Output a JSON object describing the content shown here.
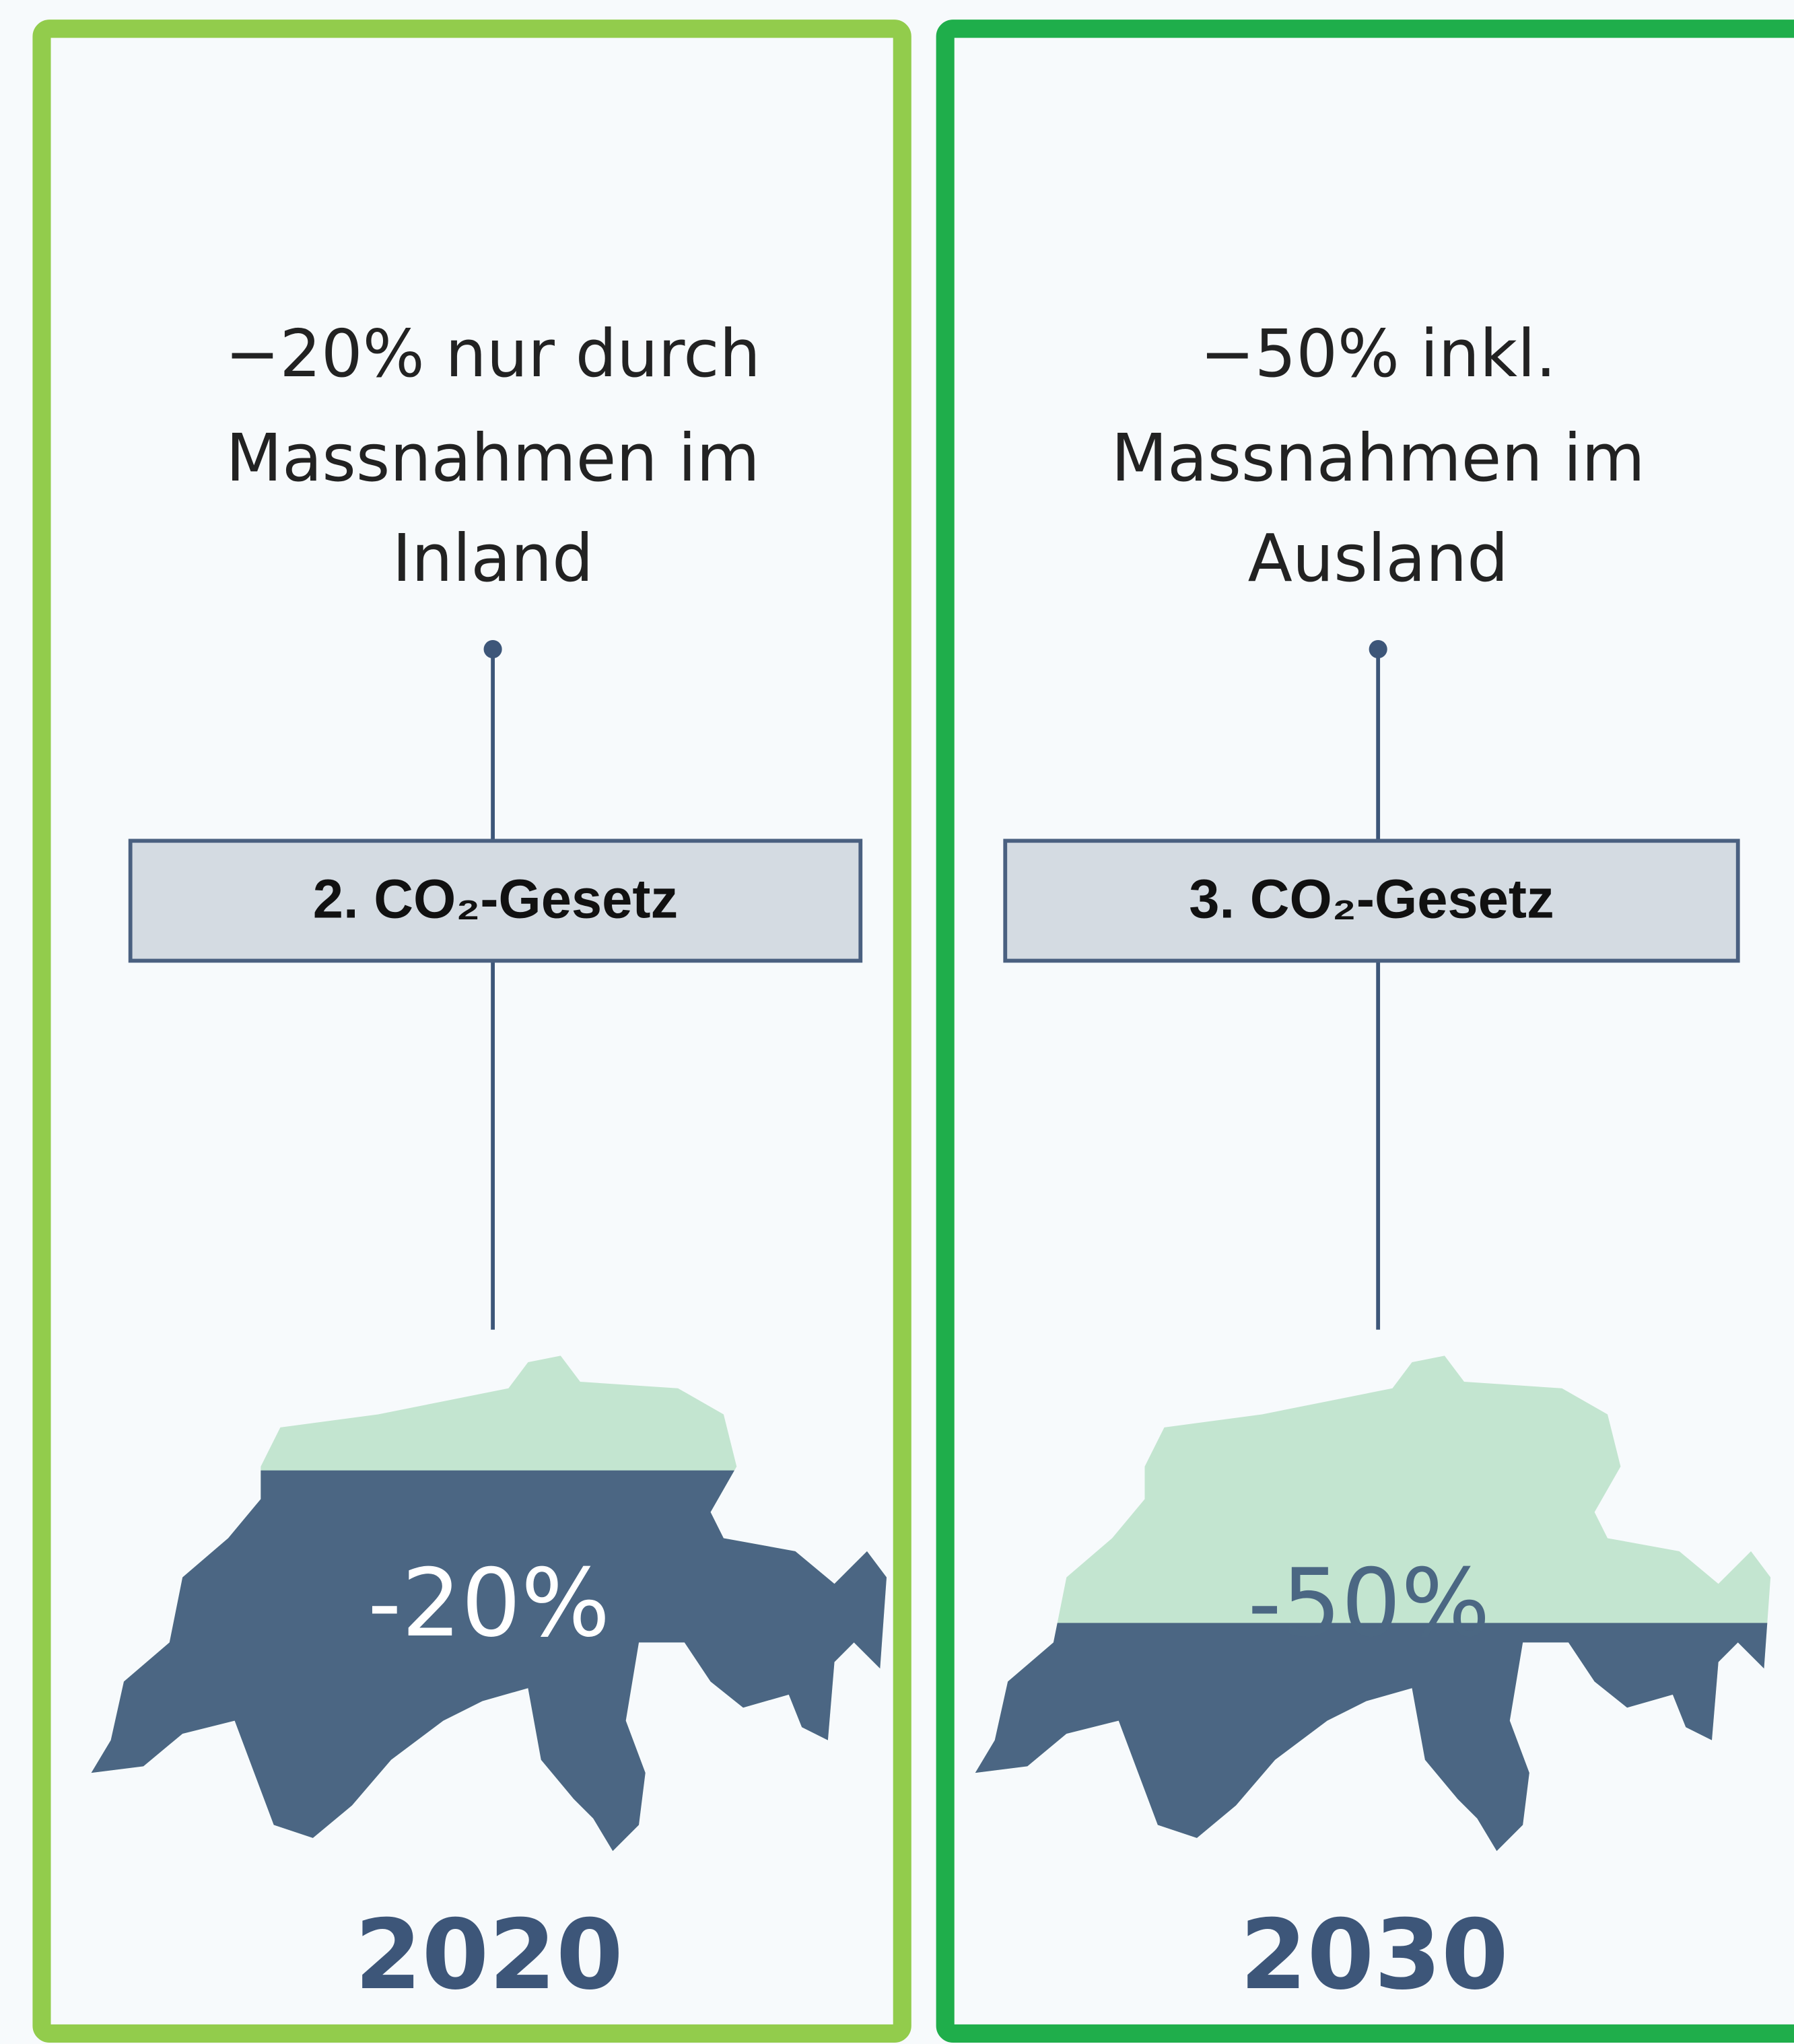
{
  "panels": [
    {
      "heading_lines": [
        "−20% nur durch",
        "Massnahmen im",
        "Inland"
      ],
      "law": "2. CO₂-Gesetz",
      "percent": "-20%",
      "year": "2020"
    },
    {
      "heading_lines": [
        "−50% inkl.",
        "Massnahmen im",
        "Ausland"
      ],
      "law": "3. CO₂-Gesetz",
      "percent": "-50%",
      "year": "2030"
    }
  ]
}
